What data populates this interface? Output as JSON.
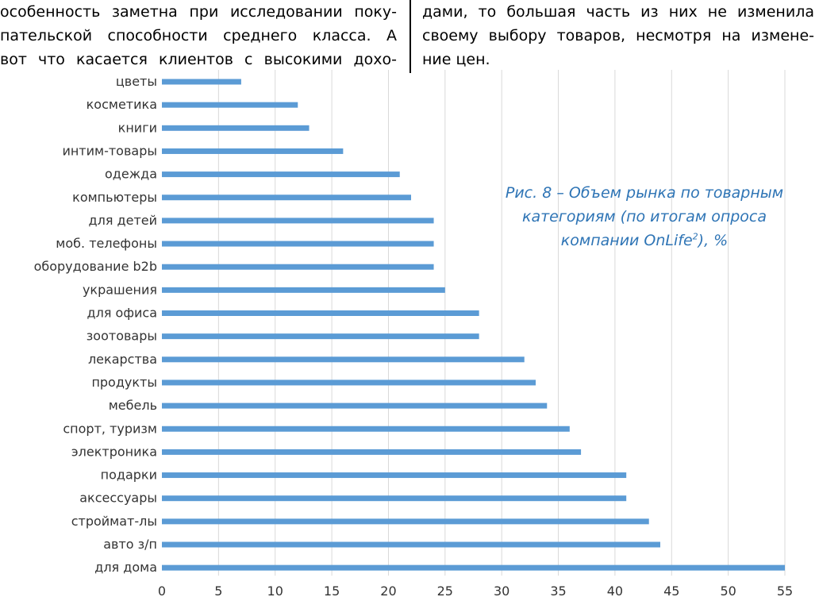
{
  "text": {
    "left_lines": [
      "особенность заметна при исследовании поку-",
      "пательской способности среднего класса. А",
      "вот что касается клиентов с высокими дохо-"
    ],
    "right_lines": [
      "дами, то большая часть из них не изменила",
      "своему выбору товаров, несмотря на измене-",
      "ние цен."
    ]
  },
  "caption": {
    "line1": "Рис. 8 – Объем рынка по товарным",
    "line2": "категориям (по итогам опроса",
    "line3_prefix": "компании OnLife",
    "line3_sup": "2",
    "line3_suffix": "), %"
  },
  "chart_data": {
    "type": "bar",
    "orientation": "horizontal",
    "title": "Рис. 8 – Объем рынка по товарным категориям (по итогам опроса компании OnLife2), %",
    "xlabel": "",
    "ylabel": "",
    "xlim": [
      0,
      55
    ],
    "xticks": [
      0,
      5,
      10,
      15,
      20,
      25,
      30,
      35,
      40,
      45,
      50,
      55
    ],
    "grid": "vertical",
    "bar_color": "#5b9bd5",
    "categories": [
      "цветы",
      "косметика",
      "книги",
      "интим-товары",
      "одежда",
      "компьютеры",
      "для детей",
      "моб. телефоны",
      "оборудование b2b",
      "украшения",
      "для офиса",
      "зоотовары",
      "лекарства",
      "продукты",
      "мебель",
      "спорт, туризм",
      "электроника",
      "подарки",
      "аксессуары",
      "строймат-лы",
      "авто з/п",
      "для дома"
    ],
    "values": [
      7,
      12,
      13,
      16,
      21,
      22,
      24,
      24,
      24,
      25,
      28,
      28,
      32,
      33,
      34,
      36,
      37,
      41,
      41,
      43,
      44,
      55
    ]
  }
}
